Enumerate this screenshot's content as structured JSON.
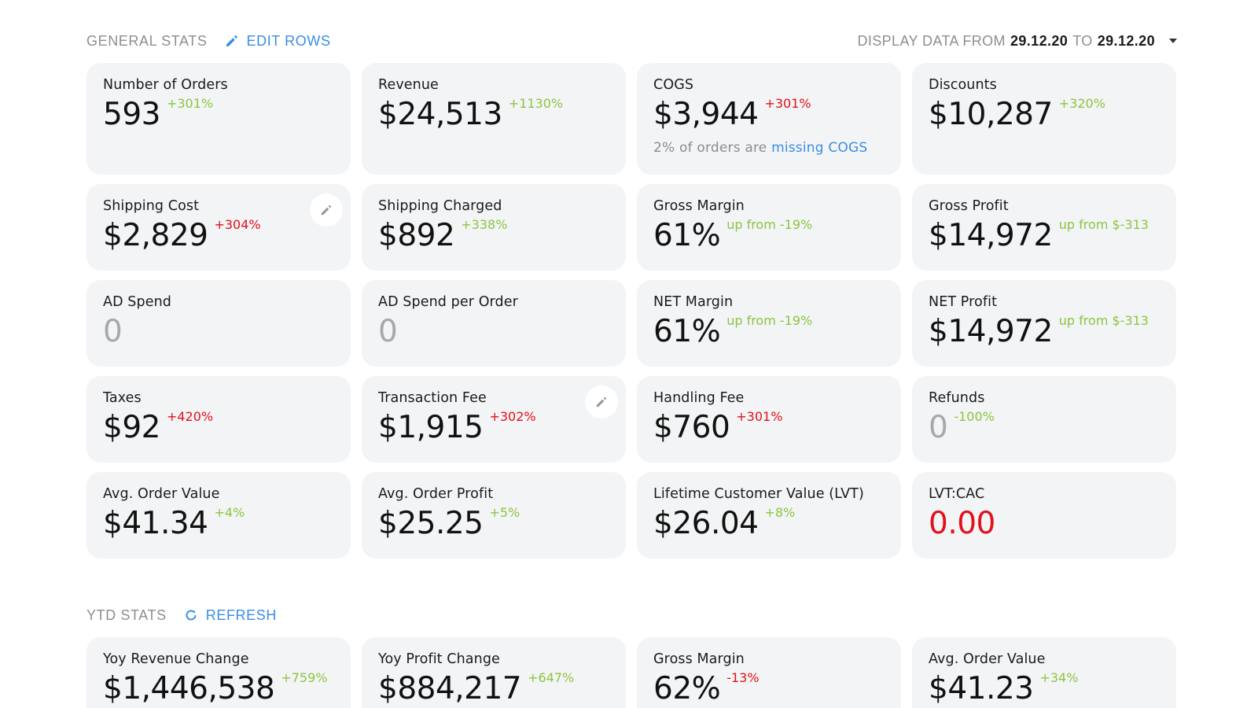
{
  "general": {
    "title": "GENERAL STATS",
    "edit_label": "EDIT ROWS",
    "edit_icon": "pencil-icon",
    "date_prefix": "DISPLAY DATA FROM",
    "date_from": "29.12.20",
    "date_to_word": "TO",
    "date_to": "29.12.20"
  },
  "colors": {
    "accent": "#3a8ee6",
    "positive": "#8cc63f",
    "negative": "#e3101a",
    "card_bg": "#f3f4f6"
  },
  "cards": [
    {
      "label": "Number of Orders",
      "value": "593",
      "delta": "+301%",
      "delta_tone": "green"
    },
    {
      "label": "Revenue",
      "value": "$24,513",
      "delta": "+1130%",
      "delta_tone": "green"
    },
    {
      "label": "COGS",
      "value": "$3,944",
      "delta": "+301%",
      "delta_tone": "red",
      "note_text": "2% of orders are",
      "note_link": "missing COGS"
    },
    {
      "label": "Discounts",
      "value": "$10,287",
      "delta": "+320%",
      "delta_tone": "green"
    },
    {
      "label": "Shipping Cost",
      "value": "$2,829",
      "delta": "+304%",
      "delta_tone": "red",
      "editable": true
    },
    {
      "label": "Shipping Charged",
      "value": "$892",
      "delta": "+338%",
      "delta_tone": "green"
    },
    {
      "label": "Gross Margin",
      "value": "61%",
      "delta": "up from -19%",
      "delta_tone": "green"
    },
    {
      "label": "Gross Profit",
      "value": "$14,972",
      "delta": "up from $-313",
      "delta_tone": "green"
    },
    {
      "label": "AD Spend",
      "value": "0",
      "value_tone": "muted"
    },
    {
      "label": "AD Spend per Order",
      "value": "0",
      "value_tone": "muted"
    },
    {
      "label": "NET Margin",
      "value": "61%",
      "delta": "up from -19%",
      "delta_tone": "green"
    },
    {
      "label": "NET Profit",
      "value": "$14,972",
      "delta": "up from $-313",
      "delta_tone": "green"
    },
    {
      "label": "Taxes",
      "value": "$92",
      "delta": "+420%",
      "delta_tone": "red"
    },
    {
      "label": "Transaction Fee",
      "value": "$1,915",
      "delta": "+302%",
      "delta_tone": "red",
      "editable": true
    },
    {
      "label": "Handling Fee",
      "value": "$760",
      "delta": "+301%",
      "delta_tone": "red"
    },
    {
      "label": "Refunds",
      "value": "0",
      "value_tone": "muted",
      "delta": "-100%",
      "delta_tone": "green"
    },
    {
      "label": "Avg. Order Value",
      "value": "$41.34",
      "delta": "+4%",
      "delta_tone": "green"
    },
    {
      "label": "Avg. Order Profit",
      "value": "$25.25",
      "delta": "+5%",
      "delta_tone": "green"
    },
    {
      "label": "Lifetime Customer Value (LVT)",
      "value": "$26.04",
      "delta": "+8%",
      "delta_tone": "green"
    },
    {
      "label": "LVT:CAC",
      "value": "0.00",
      "value_tone": "red"
    }
  ],
  "ytd": {
    "title": "YTD STATS",
    "refresh_label": "REFRESH",
    "refresh_icon": "refresh-icon",
    "cards": [
      {
        "label": "Yoy Revenue Change",
        "value": "$1,446,538",
        "delta": "+759%",
        "delta_tone": "green"
      },
      {
        "label": "Yoy Profit Change",
        "value": "$884,217",
        "delta": "+647%",
        "delta_tone": "green"
      },
      {
        "label": "Gross Margin",
        "value": "62%",
        "delta": "-13%",
        "delta_tone": "red"
      },
      {
        "label": "Avg. Order Value",
        "value": "$41.23",
        "delta": "+34%",
        "delta_tone": "green"
      }
    ]
  }
}
